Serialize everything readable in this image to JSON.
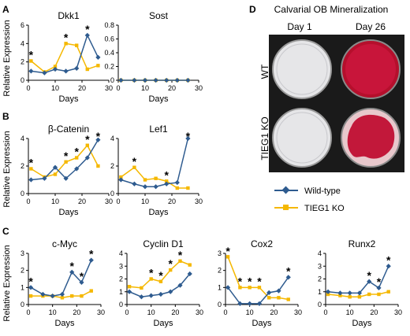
{
  "panel_labels": {
    "A": "A",
    "B": "B",
    "C": "C",
    "D": "D"
  },
  "legend": {
    "items": [
      {
        "label": "Wild-type",
        "color": "#2e5b8f",
        "marker": "diamond"
      },
      {
        "label": "TIEG1 KO",
        "color": "#f5b800",
        "marker": "square"
      }
    ]
  },
  "photo_panel": {
    "title": "Calvarial OB Mineralization",
    "col_labels": [
      "Day 1",
      "Day 26"
    ],
    "row_labels": [
      "WT",
      "TIEG1 KO"
    ]
  },
  "colors": {
    "wildtype": "#2e5b8f",
    "ko": "#f5b800",
    "stain": "#c0102e"
  },
  "chart_data": [
    {
      "type": "line",
      "title": "Dkk1",
      "xlabel": "Days",
      "ylabel": "Relative Expression",
      "xlim": [
        0,
        30
      ],
      "ylim": [
        0,
        6
      ],
      "yticks": [
        0,
        2,
        4,
        6
      ],
      "xticks": [
        0,
        10,
        20,
        30
      ],
      "series": [
        {
          "name": "Wild-type",
          "x": [
            1,
            6,
            10,
            14,
            18,
            22,
            26
          ],
          "y": [
            1.0,
            0.8,
            1.2,
            1.0,
            1.3,
            4.9,
            2.5
          ]
        },
        {
          "name": "TIEG1 KO",
          "x": [
            1,
            6,
            10,
            14,
            18,
            22,
            26
          ],
          "y": [
            2.1,
            0.9,
            1.5,
            4.0,
            3.8,
            1.2,
            1.6
          ]
        }
      ],
      "stars": [
        1,
        14,
        22
      ]
    },
    {
      "type": "line",
      "title": "Sost",
      "xlabel": "Days",
      "xlim": [
        0,
        30
      ],
      "ylim": [
        0,
        0.8
      ],
      "yticks": [
        0,
        0.2,
        0.4,
        0.6,
        0.8
      ],
      "xticks": [
        0,
        10,
        20,
        30
      ],
      "series": [
        {
          "name": "Wild-type",
          "x": [
            1,
            6,
            10,
            14,
            18,
            22,
            26
          ],
          "y": [
            0,
            0,
            0,
            0,
            0,
            0,
            0
          ]
        },
        {
          "name": "TIEG1 KO",
          "x": [
            1,
            6,
            10,
            14,
            18,
            22,
            26
          ],
          "y": [
            0,
            0,
            0,
            0,
            0,
            0,
            0
          ]
        }
      ],
      "stars": []
    },
    {
      "type": "line",
      "title": "β-Catenin",
      "xlabel": "Days",
      "ylabel": "Relative Expression",
      "xlim": [
        0,
        30
      ],
      "ylim": [
        0,
        4
      ],
      "yticks": [
        0,
        2,
        4
      ],
      "xticks": [
        0,
        10,
        20,
        30
      ],
      "series": [
        {
          "name": "Wild-type",
          "x": [
            1,
            6,
            10,
            14,
            18,
            22,
            26
          ],
          "y": [
            1.0,
            1.1,
            1.9,
            1.1,
            1.8,
            2.6,
            3.9
          ]
        },
        {
          "name": "TIEG1 KO",
          "x": [
            1,
            6,
            10,
            14,
            18,
            22,
            26
          ],
          "y": [
            1.8,
            1.2,
            1.4,
            2.3,
            2.6,
            3.5,
            2.0
          ]
        }
      ],
      "stars": [
        1,
        14,
        18,
        22,
        26
      ]
    },
    {
      "type": "line",
      "title": "Lef1",
      "xlabel": "Days",
      "xlim": [
        0,
        30
      ],
      "ylim": [
        0,
        4
      ],
      "yticks": [
        0,
        2,
        4
      ],
      "xticks": [
        0,
        10,
        20,
        30
      ],
      "series": [
        {
          "name": "Wild-type",
          "x": [
            1,
            6,
            10,
            14,
            18,
            22,
            26
          ],
          "y": [
            1.0,
            0.7,
            0.5,
            0.5,
            0.7,
            0.8,
            4.0
          ]
        },
        {
          "name": "TIEG1 KO",
          "x": [
            1,
            6,
            10,
            14,
            18,
            22,
            26
          ],
          "y": [
            1.2,
            1.9,
            1.0,
            1.1,
            0.9,
            0.4,
            0.4
          ]
        }
      ],
      "stars": [
        6,
        18,
        26
      ]
    },
    {
      "type": "line",
      "title": "c-Myc",
      "xlabel": "Days",
      "ylabel": "Relative Expression",
      "xlim": [
        0,
        30
      ],
      "ylim": [
        0,
        3
      ],
      "yticks": [
        0,
        1,
        2,
        3
      ],
      "xticks": [
        0,
        10,
        20,
        30
      ],
      "series": [
        {
          "name": "Wild-type",
          "x": [
            1,
            6,
            10,
            14,
            18,
            22,
            26
          ],
          "y": [
            1.0,
            0.6,
            0.5,
            0.6,
            1.9,
            1.3,
            2.6
          ]
        },
        {
          "name": "TIEG1 KO",
          "x": [
            1,
            6,
            10,
            14,
            18,
            22,
            26
          ],
          "y": [
            0.5,
            0.5,
            0.5,
            0.4,
            0.5,
            0.5,
            0.8
          ]
        }
      ],
      "stars": [
        1,
        18,
        22,
        26
      ]
    },
    {
      "type": "line",
      "title": "Cyclin D1",
      "xlabel": "Days",
      "xlim": [
        0,
        30
      ],
      "ylim": [
        0,
        4
      ],
      "yticks": [
        0,
        1,
        2,
        3,
        4
      ],
      "xticks": [
        0,
        10,
        20,
        30
      ],
      "series": [
        {
          "name": "Wild-type",
          "x": [
            1,
            6,
            10,
            14,
            18,
            22,
            26
          ],
          "y": [
            1.0,
            0.6,
            0.7,
            0.8,
            1.0,
            1.5,
            2.4
          ]
        },
        {
          "name": "TIEG1 KO",
          "x": [
            1,
            6,
            10,
            14,
            18,
            22,
            26
          ],
          "y": [
            1.4,
            1.3,
            2.0,
            1.8,
            2.7,
            3.4,
            3.1
          ]
        }
      ],
      "stars": [
        10,
        14,
        18,
        22
      ]
    },
    {
      "type": "line",
      "title": "Cox2",
      "xlabel": "Days",
      "xlim": [
        0,
        30
      ],
      "ylim": [
        0,
        3
      ],
      "yticks": [
        0,
        1,
        2,
        3
      ],
      "xticks": [
        0,
        10,
        20,
        30
      ],
      "series": [
        {
          "name": "Wild-type",
          "x": [
            1,
            6,
            10,
            14,
            18,
            22,
            26
          ],
          "y": [
            1.0,
            0.05,
            0.05,
            0.05,
            0.7,
            0.8,
            1.6
          ]
        },
        {
          "name": "TIEG1 KO",
          "x": [
            1,
            6,
            10,
            14,
            18,
            22,
            26
          ],
          "y": [
            2.8,
            1.0,
            1.0,
            1.0,
            0.4,
            0.4,
            0.3
          ]
        }
      ],
      "stars": [
        1,
        6,
        10,
        14,
        26
      ]
    },
    {
      "type": "line",
      "title": "Runx2",
      "xlabel": "Days",
      "xlim": [
        0,
        30
      ],
      "ylim": [
        0,
        4
      ],
      "yticks": [
        0,
        1,
        2,
        3,
        4
      ],
      "xticks": [
        0,
        10,
        20,
        30
      ],
      "series": [
        {
          "name": "Wild-type",
          "x": [
            1,
            6,
            10,
            14,
            18,
            22,
            26
          ],
          "y": [
            1.0,
            0.9,
            0.9,
            0.9,
            1.8,
            1.3,
            3.0
          ]
        },
        {
          "name": "TIEG1 KO",
          "x": [
            1,
            6,
            10,
            14,
            18,
            22,
            26
          ],
          "y": [
            0.8,
            0.7,
            0.6,
            0.6,
            0.8,
            0.8,
            1.0
          ]
        }
      ],
      "stars": [
        18,
        22,
        26
      ]
    }
  ]
}
